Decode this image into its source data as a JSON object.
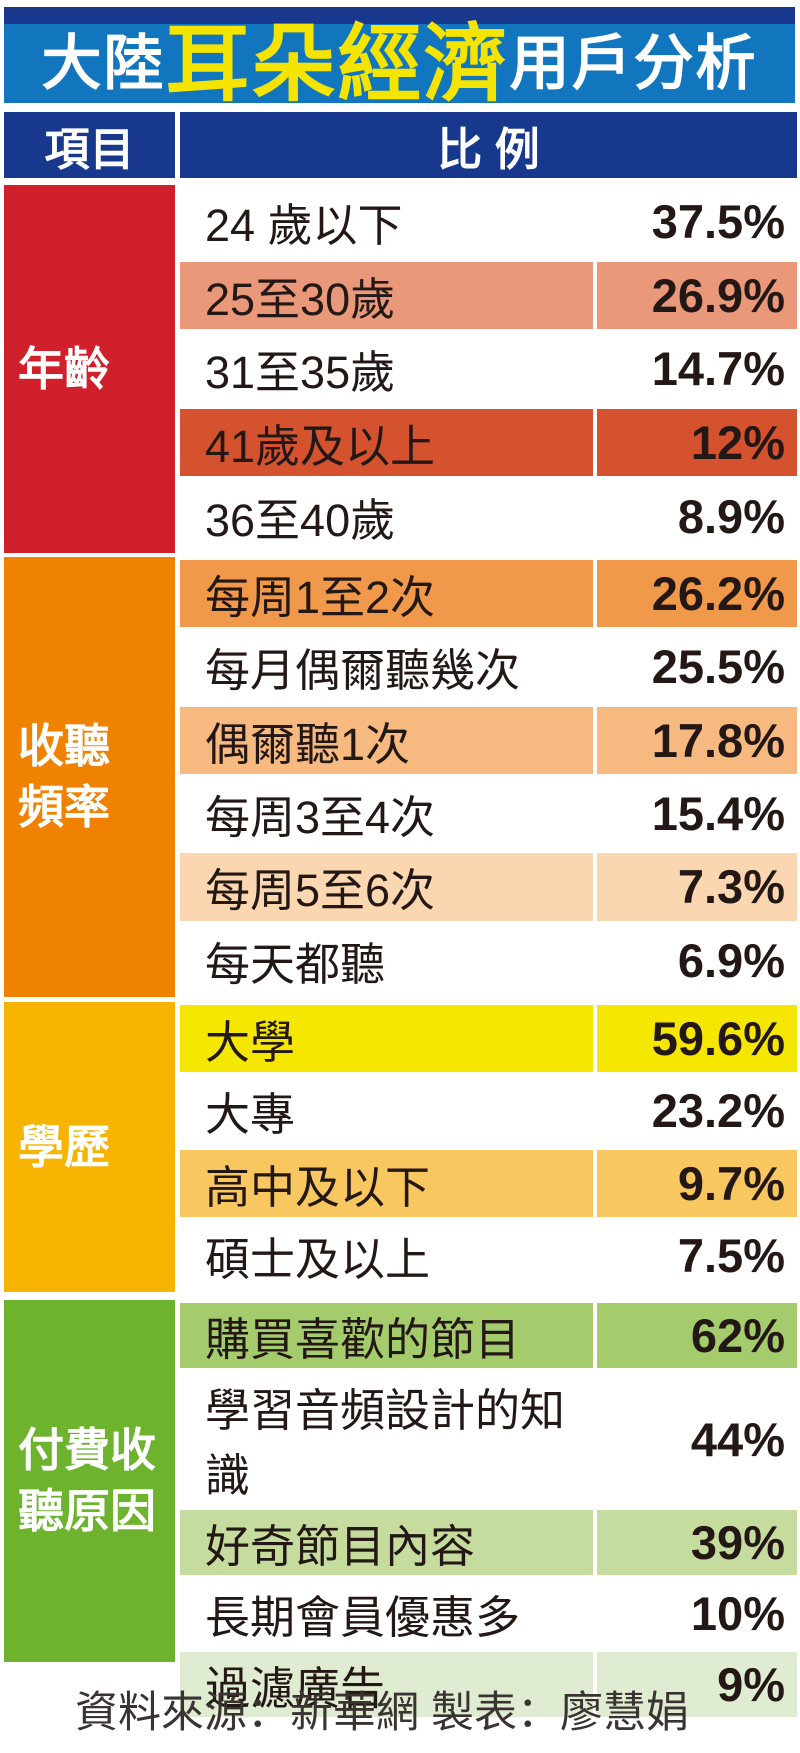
{
  "title": {
    "prefix": "大陸",
    "highlight": "耳朵經濟",
    "suffix": "用戶分析"
  },
  "header": {
    "col_item": "項目",
    "col_ratio": "比 例"
  },
  "sections": [
    {
      "label": "年齡",
      "label_display": "年齡",
      "color": "#d0202b",
      "rows": [
        {
          "label": "24 歲以下",
          "value": "37.5%",
          "bg": ""
        },
        {
          "label": "25至30歲",
          "value": "26.9%",
          "bg": "#e9997a"
        },
        {
          "label": "31至35歲",
          "value": "14.7%",
          "bg": ""
        },
        {
          "label": "41歲及以上",
          "value": "12%",
          "bg": "#d5522f"
        },
        {
          "label": "36至40歲",
          "value": "8.9%",
          "bg": ""
        }
      ]
    },
    {
      "label": "收聽頻率",
      "label_display": "收聽\n頻率",
      "color": "#ef8200",
      "rows": [
        {
          "label": "每周1至2次",
          "value": "26.2%",
          "bg": "#f1994a"
        },
        {
          "label": "每月偶爾聽幾次",
          "value": "25.5%",
          "bg": ""
        },
        {
          "label": "偶爾聽1次",
          "value": "17.8%",
          "bg": "#f6ba80"
        },
        {
          "label": "每周3至4次",
          "value": "15.4%",
          "bg": ""
        },
        {
          "label": "每周5至6次",
          "value": "7.3%",
          "bg": "#fad7b0"
        },
        {
          "label": "每天都聽",
          "value": "6.9%",
          "bg": ""
        }
      ]
    },
    {
      "label": "學歷",
      "label_display": "學歷",
      "color": "#f6b400",
      "rows": [
        {
          "label": "大學",
          "value": "59.6%",
          "bg": "#f6e700"
        },
        {
          "label": "大專",
          "value": "23.2%",
          "bg": ""
        },
        {
          "label": "高中及以下",
          "value": "9.7%",
          "bg": "#f8c75f"
        },
        {
          "label": "碩士及以上",
          "value": "7.5%",
          "bg": ""
        }
      ]
    },
    {
      "label": "付費收聽原因",
      "label_display": "付費收\n聽原因",
      "color": "#6db32d",
      "rows": [
        {
          "label": "購買喜歡的節目",
          "value": "62%",
          "bg": "#a5cc6c"
        },
        {
          "label": "學習音頻設計的知識",
          "value": "44%",
          "bg": ""
        },
        {
          "label": "好奇節目內容",
          "value": "39%",
          "bg": "#c6dc9f"
        },
        {
          "label": "長期會員優惠多",
          "value": "10%",
          "bg": ""
        },
        {
          "label": "過濾廣告",
          "value": "9%",
          "bg": "#e0ecd2"
        }
      ]
    }
  ],
  "footer": {
    "text": "資料來源：新華網 製表：廖慧娟"
  },
  "colors": {
    "title_bar": "#1176bd",
    "title_strip": "#17388d",
    "title_highlight": "#f5e300",
    "header_navy": "#17388d",
    "text_dark": "#231815",
    "footer_text": "#3a3331"
  },
  "chart_data": {
    "type": "table",
    "title": "大陸耳朵經濟用戶分析",
    "columns": [
      "項目",
      "比例"
    ],
    "units": "%",
    "groups": [
      {
        "category": "年齡",
        "items": [
          [
            "24 歲以下",
            37.5
          ],
          [
            "25至30歲",
            26.9
          ],
          [
            "31至35歲",
            14.7
          ],
          [
            "41歲及以上",
            12
          ],
          [
            "36至40歲",
            8.9
          ]
        ]
      },
      {
        "category": "收聽頻率",
        "items": [
          [
            "每周1至2次",
            26.2
          ],
          [
            "每月偶爾聽幾次",
            25.5
          ],
          [
            "偶爾聽1次",
            17.8
          ],
          [
            "每周3至4次",
            15.4
          ],
          [
            "每周5至6次",
            7.3
          ],
          [
            "每天都聽",
            6.9
          ]
        ]
      },
      {
        "category": "學歷",
        "items": [
          [
            "大學",
            59.6
          ],
          [
            "大專",
            23.2
          ],
          [
            "高中及以下",
            9.7
          ],
          [
            "碩士及以上",
            7.5
          ]
        ]
      },
      {
        "category": "付費收聽原因",
        "items": [
          [
            "購買喜歡的節目",
            62
          ],
          [
            "學習音頻設計的知識",
            44
          ],
          [
            "好奇節目內容",
            39
          ],
          [
            "長期會員優惠多",
            10
          ],
          [
            "過濾廣告",
            9
          ]
        ]
      }
    ],
    "source": "新華網",
    "credit": "廖慧娟"
  }
}
